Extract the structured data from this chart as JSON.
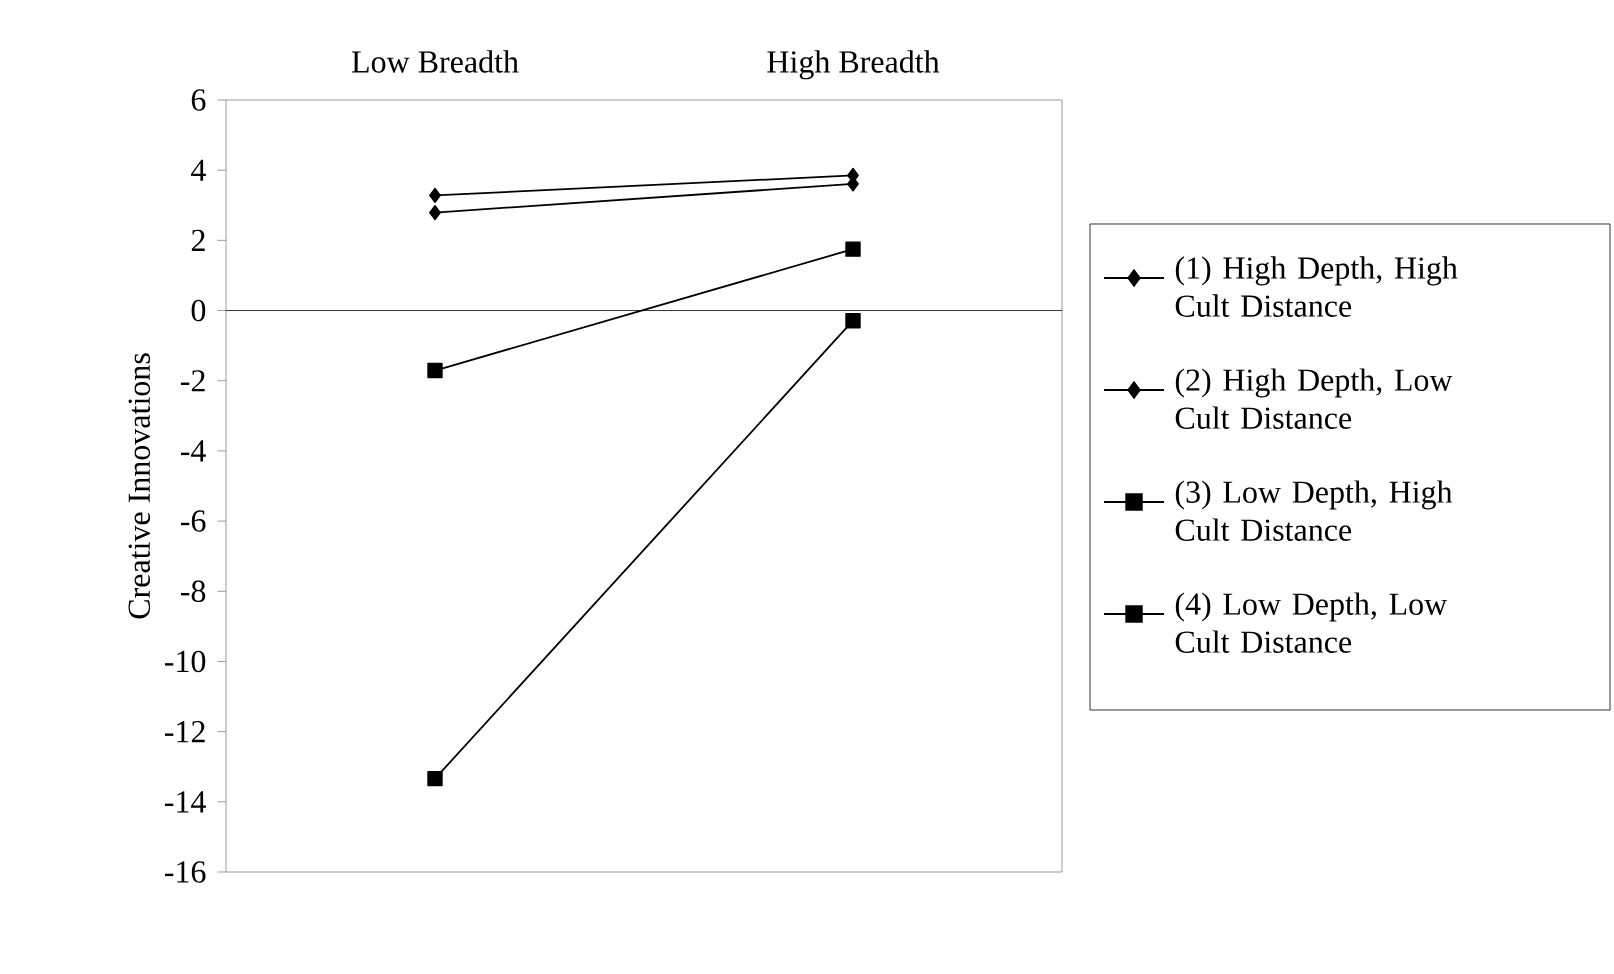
{
  "chart_data": {
    "type": "line",
    "ylabel": "Creative Innovations",
    "categories": [
      "Low Breadth",
      "High Breadth"
    ],
    "series": [
      {
        "name": "(1) High Depth, High Cult Distance",
        "color": "#000000",
        "marker": "diamond",
        "values": [
          3.28,
          3.85
        ]
      },
      {
        "name": "(2) High Depth, Low Cult Distance",
        "color": "#000000",
        "marker": "diamond",
        "values": [
          2.79,
          3.61
        ]
      },
      {
        "name": "(3) Low Depth, High Cult Distance",
        "color": "#000000",
        "marker": "square",
        "values": [
          -1.71,
          1.75
        ]
      },
      {
        "name": "(4) Low Depth, Low Cult Distance",
        "color": "#000000",
        "marker": "square",
        "values": [
          -13.34,
          -0.29
        ]
      }
    ],
    "ylim": [
      -16,
      6
    ],
    "yticks": [
      -16,
      -14,
      -12,
      -10,
      -8,
      -6,
      -4,
      -2,
      0,
      2,
      4,
      6
    ],
    "ref_lines": [
      {
        "axis": "y",
        "value": 0,
        "color": "#000000"
      }
    ],
    "legend": "right",
    "line_style": "solid"
  }
}
